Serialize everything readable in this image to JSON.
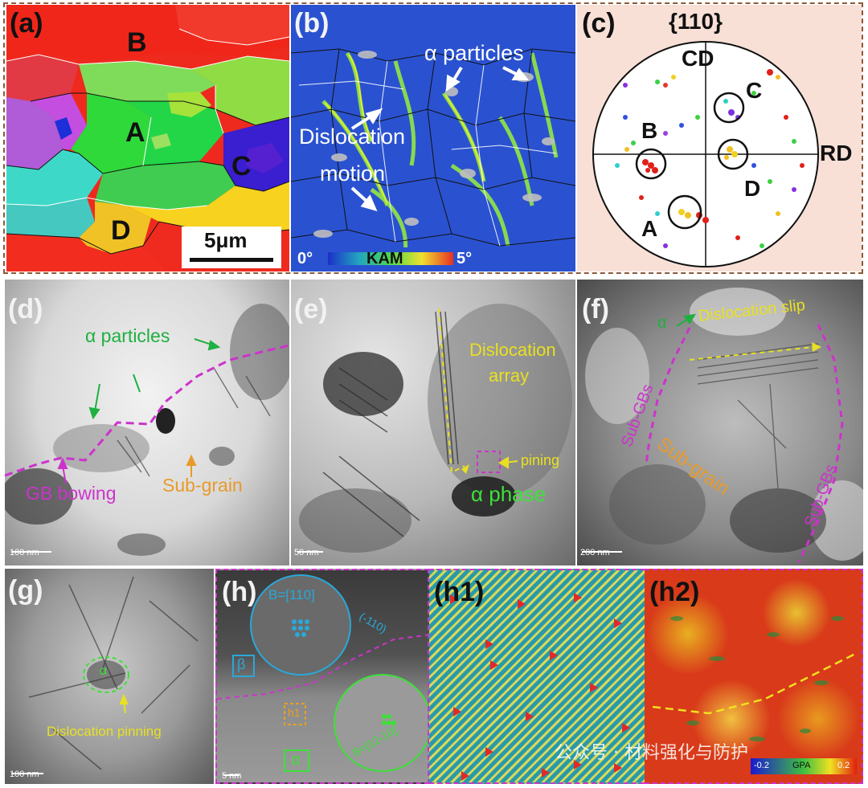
{
  "panels": {
    "a": {
      "label": "(a)",
      "grains": [
        "A",
        "B",
        "C",
        "D"
      ],
      "scalebar": "5μm"
    },
    "b": {
      "label": "(b)",
      "ann_particles": "α particles",
      "ann_disloc_1": "Dislocation",
      "ann_disloc_2": "motion",
      "kam_min": "0°",
      "kam_title": "KAM",
      "kam_max": "5°"
    },
    "c": {
      "label": "(c)",
      "title": "{110}",
      "axis_top": "CD",
      "axis_right": "RD",
      "points": [
        "A",
        "B",
        "C",
        "D"
      ]
    },
    "d": {
      "label": "(d)",
      "ann_particles": "α particles",
      "ann_bowing": "GB bowing",
      "ann_subgrain": "Sub-grain",
      "scalebar": "100 nm"
    },
    "e": {
      "label": "(e)",
      "ann_array_1": "Dislocation",
      "ann_array_2": "array",
      "ann_pining": "pining",
      "ann_phase": "α phase",
      "scalebar": "50 nm"
    },
    "f": {
      "label": "(f)",
      "ann_alpha": "α",
      "ann_slip": "Dislocation slip",
      "ann_subgbs_left": "Sub-GBs",
      "ann_subgrain": "Sub-grain",
      "ann_subgbs_right": "Sub-GBs",
      "scalebar": "200 nm"
    },
    "g": {
      "label": "(g)",
      "ann_alpha": "α",
      "ann_pinning": "Dislocation pinning",
      "scalebar": "100 nm"
    },
    "h": {
      "label": "(h)",
      "ann_beta_zone": "B=[110]",
      "ann_plane": "(-110)",
      "ann_beta": "β",
      "ann_box": "h1",
      "ann_alpha": "α",
      "ann_alpha_zone": "B=[12-10]",
      "scalebar": "5 nm"
    },
    "h1": {
      "label": "(h1)"
    },
    "h2": {
      "label": "(h2)",
      "gpa_min": "-0.2",
      "gpa_title": "GPA",
      "gpa_max": "0.2"
    }
  },
  "watermark": "公众号 · 材料强化与防护"
}
